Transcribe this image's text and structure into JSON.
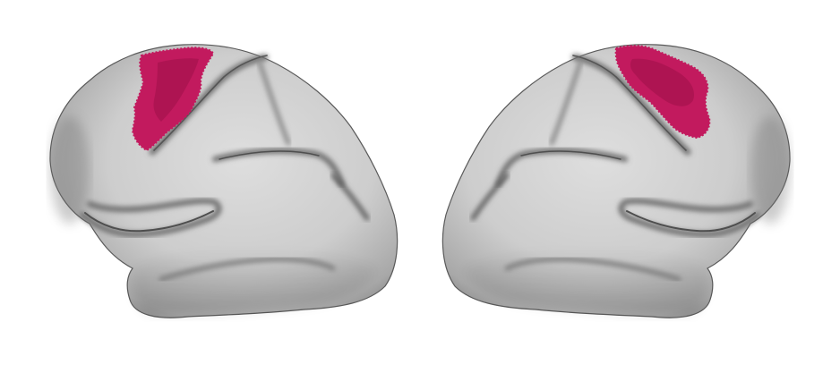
{
  "scene": {
    "background_color": "#ffffff",
    "surface_base_color": "#c9c9c9",
    "surface_shadow_color": "#6e6e6e",
    "surface_highlight_color": "#e6e6e6",
    "activation_color": "#c21a5e",
    "activation_dark_color": "#9e1148",
    "hemispheres": [
      {
        "name": "left-hemisphere",
        "view": "lateral"
      },
      {
        "name": "right-hemisphere",
        "view": "lateral"
      }
    ]
  }
}
